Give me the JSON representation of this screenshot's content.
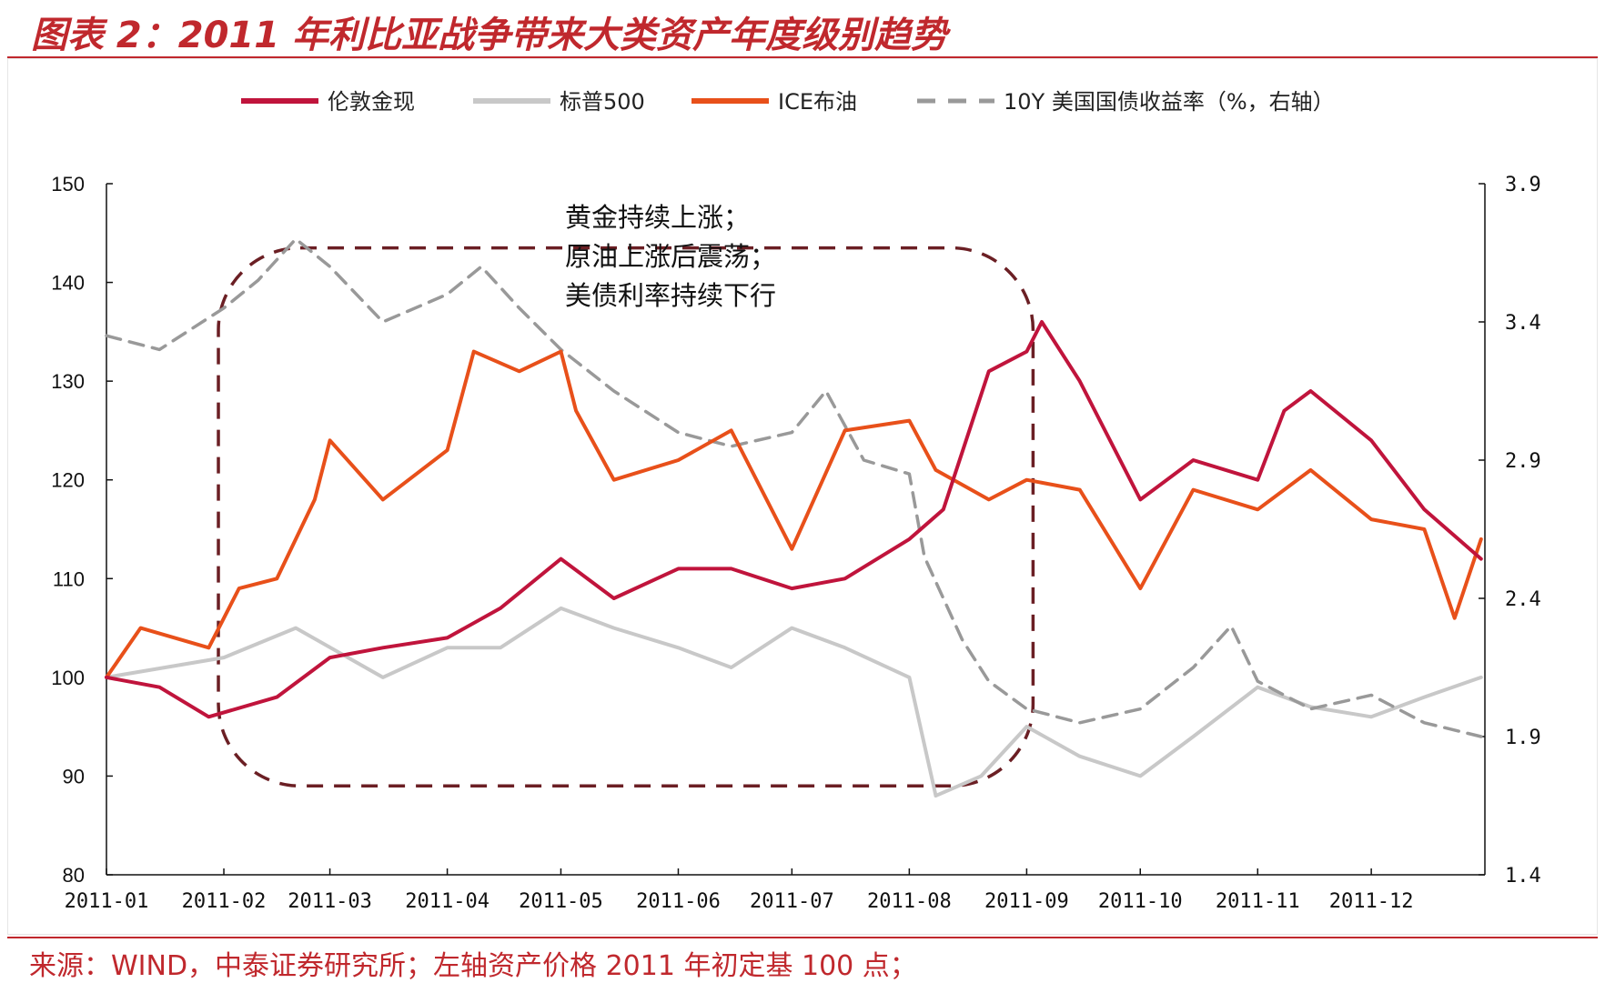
{
  "header": {
    "title": "图表 2：2011 年利比亚战争带来大类资产年度级别趋势"
  },
  "footer": {
    "source": "来源：WIND，中泰证券研究所；左轴资产价格 2011 年初定基 100 点；"
  },
  "chart_data": {
    "type": "line",
    "title": "",
    "x_tick_labels": [
      "2011-01",
      "2011-02",
      "2011-03",
      "2011-04",
      "2011-05",
      "2011-06",
      "2011-07",
      "2011-08",
      "2011-09",
      "2011-10",
      "2011-11",
      "2011-12"
    ],
    "xlim": [
      "2011-01-01",
      "2011-12-31"
    ],
    "y_left": {
      "min": 80,
      "max": 150,
      "ticks": [
        80,
        90,
        100,
        110,
        120,
        130,
        140,
        150
      ]
    },
    "y_right": {
      "min": 1.4,
      "max": 3.9,
      "ticks": [
        "1.4",
        "1.9",
        "2.4",
        "2.9",
        "3.4",
        "3.9"
      ],
      "label": ""
    },
    "grid": false,
    "legend_position": "top",
    "annotation_lines": [
      "黄金持续上涨；",
      "原油上涨后震荡；",
      "美债利率持续下行"
    ],
    "annotation_box_range": [
      "2011-02-01",
      "2011-09-01"
    ],
    "series": [
      {
        "name": "伦敦金现",
        "axis": "left",
        "color": "#c0143c",
        "style": "solid",
        "x": [
          "2011-01-01",
          "2011-01-15",
          "2011-01-28",
          "2011-02-15",
          "2011-03-01",
          "2011-03-15",
          "2011-04-01",
          "2011-04-15",
          "2011-05-01",
          "2011-05-15",
          "2011-06-01",
          "2011-06-15",
          "2011-07-01",
          "2011-07-15",
          "2011-08-01",
          "2011-08-10",
          "2011-08-22",
          "2011-09-01",
          "2011-09-05",
          "2011-09-15",
          "2011-10-01",
          "2011-10-15",
          "2011-11-01",
          "2011-11-08",
          "2011-11-15",
          "2011-12-01",
          "2011-12-15",
          "2011-12-30"
        ],
        "y": [
          100,
          99,
          96,
          98,
          102,
          103,
          104,
          107,
          112,
          108,
          111,
          111,
          109,
          110,
          114,
          117,
          131,
          133,
          136,
          130,
          118,
          122,
          120,
          127,
          129,
          124,
          117,
          112
        ]
      },
      {
        "name": "标普500",
        "axis": "left",
        "color": "#c8c8c8",
        "style": "solid",
        "x": [
          "2011-01-01",
          "2011-02-01",
          "2011-02-20",
          "2011-03-15",
          "2011-04-01",
          "2011-04-15",
          "2011-05-01",
          "2011-05-15",
          "2011-06-01",
          "2011-06-15",
          "2011-07-01",
          "2011-07-15",
          "2011-08-01",
          "2011-08-08",
          "2011-08-20",
          "2011-09-01",
          "2011-09-15",
          "2011-10-01",
          "2011-10-15",
          "2011-11-01",
          "2011-11-15",
          "2011-12-01",
          "2011-12-15",
          "2011-12-30"
        ],
        "y": [
          100,
          102,
          105,
          100,
          103,
          103,
          107,
          105,
          103,
          101,
          105,
          103,
          100,
          88,
          90,
          95,
          92,
          90,
          94,
          99,
          97,
          96,
          98,
          100
        ]
      },
      {
        "name": "ICE布油",
        "axis": "left",
        "color": "#e8501a",
        "style": "solid",
        "x": [
          "2011-01-01",
          "2011-01-10",
          "2011-01-28",
          "2011-02-05",
          "2011-02-15",
          "2011-02-25",
          "2011-03-01",
          "2011-03-15",
          "2011-04-01",
          "2011-04-08",
          "2011-04-20",
          "2011-05-01",
          "2011-05-05",
          "2011-05-15",
          "2011-06-01",
          "2011-06-15",
          "2011-07-01",
          "2011-07-15",
          "2011-08-01",
          "2011-08-08",
          "2011-08-22",
          "2011-09-01",
          "2011-09-15",
          "2011-10-01",
          "2011-10-15",
          "2011-11-01",
          "2011-11-15",
          "2011-12-01",
          "2011-12-15",
          "2011-12-23",
          "2011-12-30"
        ],
        "y": [
          100,
          105,
          103,
          109,
          110,
          118,
          124,
          118,
          123,
          133,
          131,
          133,
          127,
          120,
          122,
          125,
          113,
          125,
          126,
          121,
          118,
          120,
          119,
          109,
          119,
          117,
          121,
          116,
          115,
          106,
          114
        ]
      },
      {
        "name": "10Y 美国国债收益率（%，右轴）",
        "axis": "right",
        "color": "#999999",
        "style": "dashed",
        "x": [
          "2011-01-01",
          "2011-01-15",
          "2011-02-01",
          "2011-02-10",
          "2011-02-20",
          "2011-03-01",
          "2011-03-15",
          "2011-04-01",
          "2011-04-10",
          "2011-04-20",
          "2011-05-01",
          "2011-05-15",
          "2011-06-01",
          "2011-06-15",
          "2011-07-01",
          "2011-07-10",
          "2011-07-20",
          "2011-08-01",
          "2011-08-05",
          "2011-08-15",
          "2011-08-22",
          "2011-09-01",
          "2011-09-15",
          "2011-10-01",
          "2011-10-15",
          "2011-10-25",
          "2011-11-01",
          "2011-11-15",
          "2011-12-01",
          "2011-12-15",
          "2011-12-30"
        ],
        "y": [
          3.35,
          3.3,
          3.45,
          3.55,
          3.7,
          3.6,
          3.4,
          3.5,
          3.6,
          3.45,
          3.3,
          3.15,
          3.0,
          2.95,
          3.0,
          3.15,
          2.9,
          2.85,
          2.55,
          2.25,
          2.1,
          2.0,
          1.95,
          2.0,
          2.15,
          2.3,
          2.1,
          2.0,
          2.05,
          1.95,
          1.9
        ]
      }
    ]
  }
}
